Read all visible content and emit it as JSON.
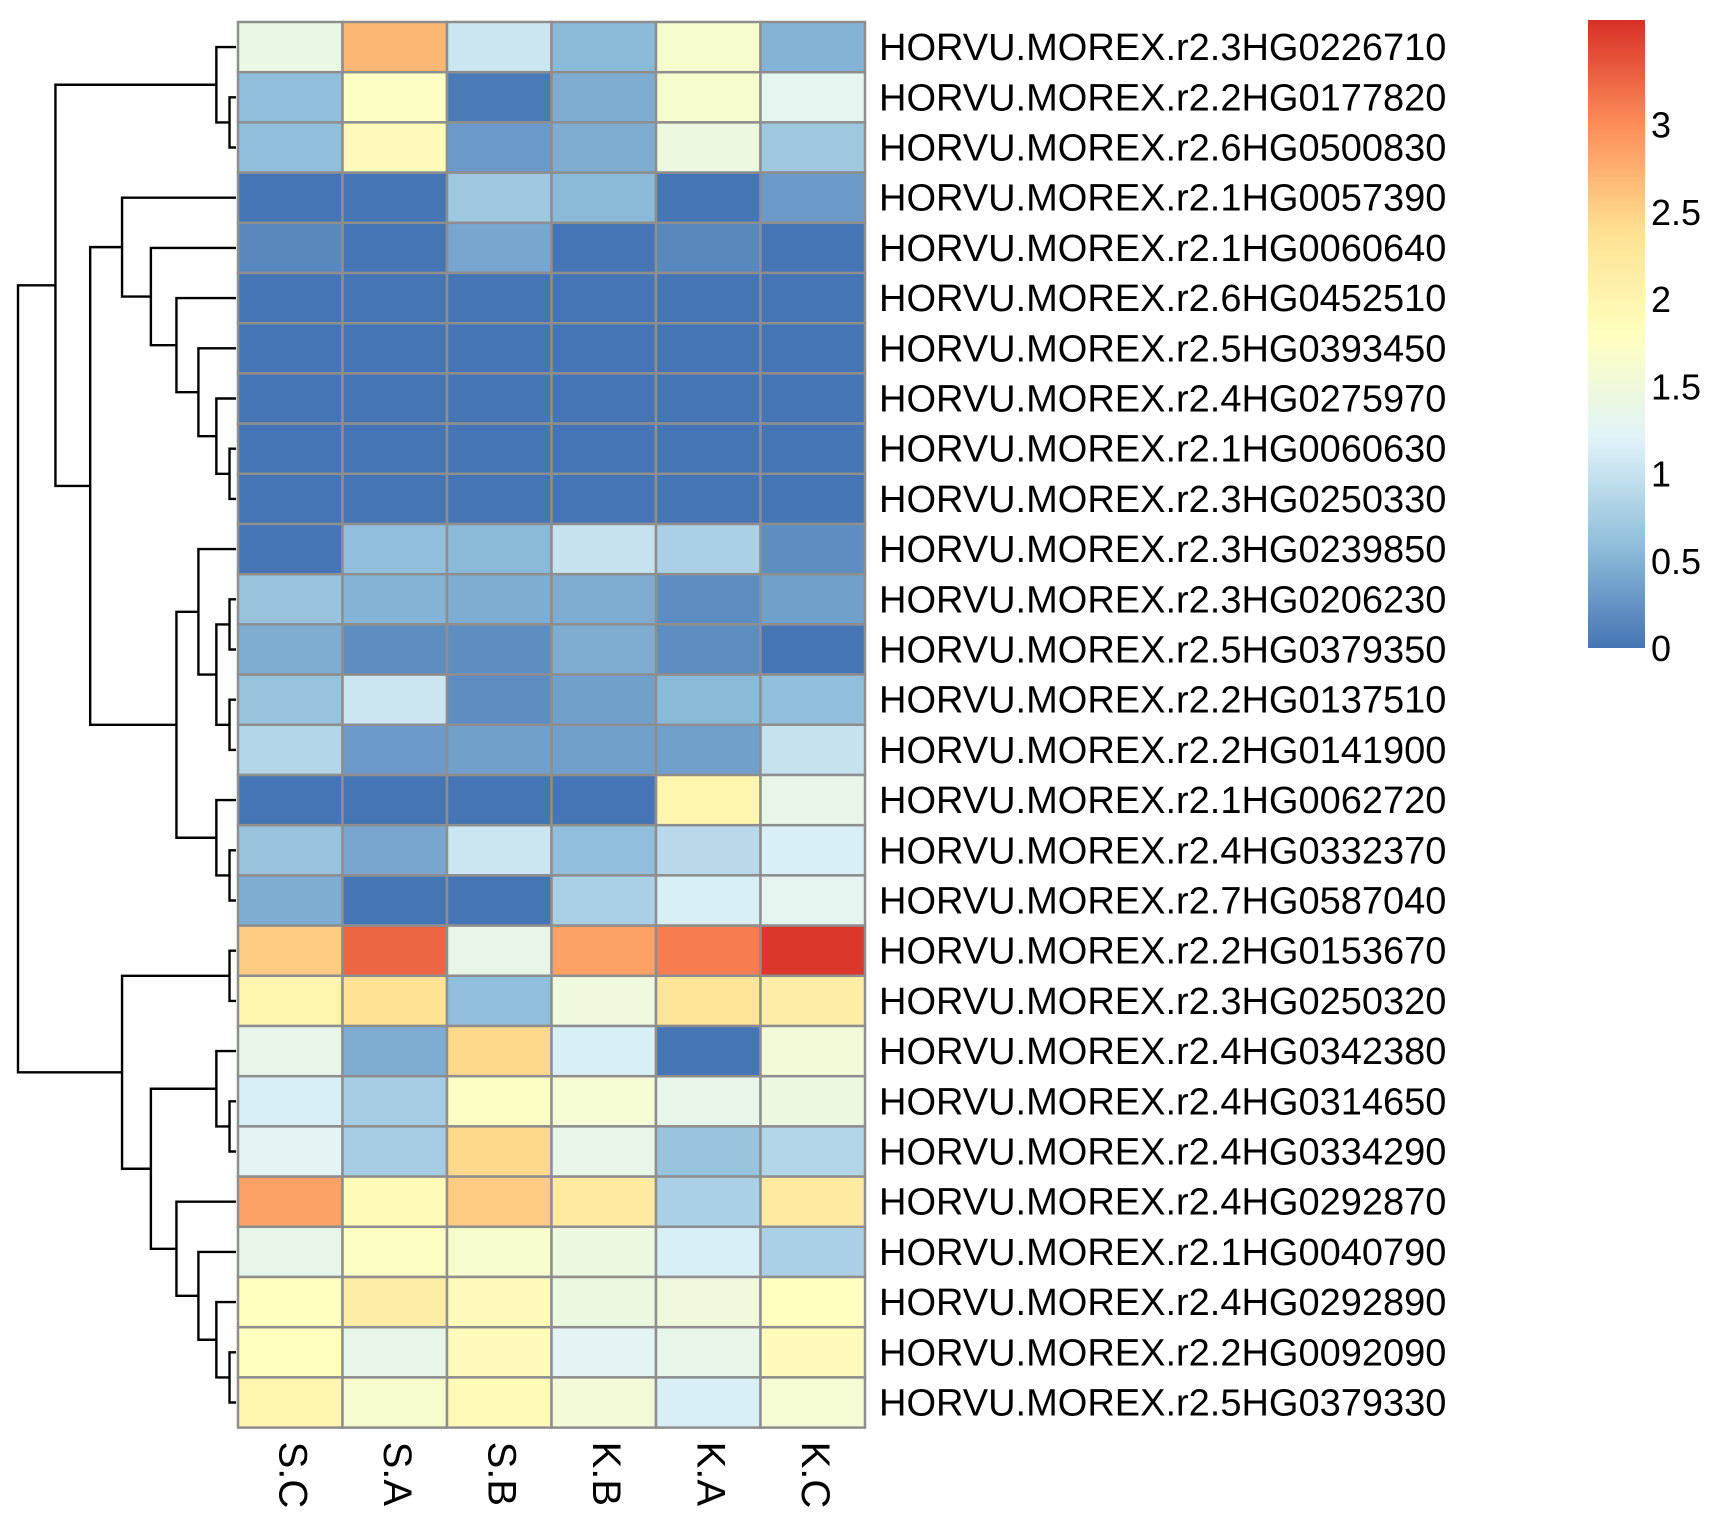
{
  "chart_data": {
    "type": "heatmap",
    "title": "",
    "xlabel": "",
    "ylabel": "",
    "columns": [
      "S.C",
      "S.A",
      "S.B",
      "K.B",
      "K.A",
      "K.C"
    ],
    "rows": [
      "HORVU.MOREX.r2.3HG0226710",
      "HORVU.MOREX.r2.2HG0177820",
      "HORVU.MOREX.r2.6HG0500830",
      "HORVU.MOREX.r2.1HG0057390",
      "HORVU.MOREX.r2.1HG0060640",
      "HORVU.MOREX.r2.6HG0452510",
      "HORVU.MOREX.r2.5HG0393450",
      "HORVU.MOREX.r2.4HG0275970",
      "HORVU.MOREX.r2.1HG0060630",
      "HORVU.MOREX.r2.3HG0250330",
      "HORVU.MOREX.r2.3HG0239850",
      "HORVU.MOREX.r2.3HG0206230",
      "HORVU.MOREX.r2.5HG0379350",
      "HORVU.MOREX.r2.2HG0137510",
      "HORVU.MOREX.r2.2HG0141900",
      "HORVU.MOREX.r2.1HG0062720",
      "HORVU.MOREX.r2.4HG0332370",
      "HORVU.MOREX.r2.7HG0587040",
      "HORVU.MOREX.r2.2HG0153670",
      "HORVU.MOREX.r2.3HG0250320",
      "HORVU.MOREX.r2.4HG0342380",
      "HORVU.MOREX.r2.4HG0314650",
      "HORVU.MOREX.r2.4HG0334290",
      "HORVU.MOREX.r2.4HG0292870",
      "HORVU.MOREX.r2.1HG0040790",
      "HORVU.MOREX.r2.4HG0292890",
      "HORVU.MOREX.r2.2HG0092090",
      "HORVU.MOREX.r2.5HG0379330"
    ],
    "values": [
      [
        1.4,
        2.7,
        1.05,
        0.55,
        1.65,
        0.5
      ],
      [
        0.6,
        1.75,
        0.05,
        0.45,
        1.65,
        1.3
      ],
      [
        0.6,
        1.85,
        0.3,
        0.45,
        1.45,
        0.7
      ],
      [
        0.0,
        0.0,
        0.7,
        0.55,
        0.0,
        0.3
      ],
      [
        0.15,
        0.0,
        0.4,
        0.0,
        0.15,
        0.0
      ],
      [
        0.0,
        0.0,
        0.0,
        0.0,
        0.0,
        0.0
      ],
      [
        0.0,
        0.0,
        0.0,
        0.0,
        0.0,
        0.0
      ],
      [
        0.0,
        0.0,
        0.0,
        0.0,
        0.0,
        0.0
      ],
      [
        0.0,
        0.0,
        0.0,
        0.0,
        0.0,
        0.0
      ],
      [
        0.0,
        0.0,
        0.0,
        0.0,
        0.0,
        0.0
      ],
      [
        0.0,
        0.6,
        0.55,
        1.0,
        0.8,
        0.2
      ],
      [
        0.65,
        0.5,
        0.45,
        0.45,
        0.2,
        0.35
      ],
      [
        0.45,
        0.2,
        0.2,
        0.45,
        0.2,
        0.0
      ],
      [
        0.65,
        1.05,
        0.2,
        0.35,
        0.55,
        0.6
      ],
      [
        0.85,
        0.3,
        0.35,
        0.35,
        0.35,
        1.0
      ],
      [
        0.0,
        0.0,
        0.0,
        0.0,
        2.0,
        1.35
      ],
      [
        0.65,
        0.4,
        1.05,
        0.6,
        0.9,
        1.15
      ],
      [
        0.45,
        0.0,
        0.0,
        0.8,
        1.15,
        1.3
      ],
      [
        2.55,
        3.25,
        1.35,
        2.85,
        3.1,
        3.55
      ],
      [
        2.0,
        2.35,
        0.6,
        1.5,
        2.3,
        2.15
      ],
      [
        1.35,
        0.45,
        2.45,
        1.15,
        0.0,
        1.55
      ],
      [
        1.15,
        0.75,
        1.75,
        1.6,
        1.35,
        1.45
      ],
      [
        1.25,
        0.75,
        2.45,
        1.35,
        0.65,
        0.85
      ],
      [
        2.85,
        1.9,
        2.55,
        2.2,
        0.8,
        2.2
      ],
      [
        1.35,
        1.75,
        1.65,
        1.45,
        1.15,
        0.8
      ],
      [
        1.8,
        2.15,
        1.85,
        1.45,
        1.5,
        1.8
      ],
      [
        1.8,
        1.35,
        1.85,
        1.25,
        1.35,
        1.85
      ],
      [
        2.0,
        1.65,
        1.9,
        1.55,
        1.15,
        1.6
      ]
    ],
    "legend": {
      "placement": "right",
      "ticks": [
        0,
        0.5,
        1,
        1.5,
        2,
        2.5,
        3
      ],
      "range": [
        0,
        3.6
      ],
      "colors": [
        "#4575b4",
        "#91bfdb",
        "#e0f3f8",
        "#ffffbf",
        "#fee090",
        "#fc8d59",
        "#d73027"
      ]
    },
    "row_dendrogram": true,
    "grid": true
  }
}
